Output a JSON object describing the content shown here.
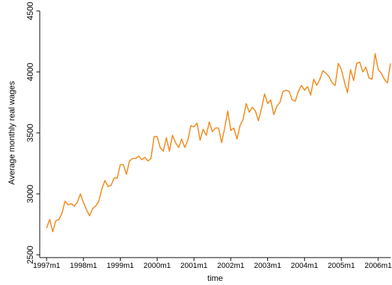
{
  "chart_data": {
    "type": "line",
    "y_label": "Average monthly real wages",
    "x_label": "time",
    "categories": [
      "1997m1",
      null,
      null,
      null,
      null,
      null,
      null,
      null,
      null,
      null,
      null,
      null,
      "1998m1",
      null,
      null,
      null,
      null,
      null,
      null,
      null,
      null,
      null,
      null,
      null,
      "1999m1",
      null,
      null,
      null,
      null,
      null,
      null,
      null,
      null,
      null,
      null,
      null,
      "2000m1",
      null,
      null,
      null,
      null,
      null,
      null,
      null,
      null,
      null,
      null,
      null,
      "2001m1",
      null,
      null,
      null,
      null,
      null,
      null,
      null,
      null,
      null,
      null,
      null,
      "2002m1",
      null,
      null,
      null,
      null,
      null,
      null,
      null,
      null,
      null,
      null,
      null,
      "2003m1",
      null,
      null,
      null,
      null,
      null,
      null,
      null,
      null,
      null,
      null,
      null,
      "2004m1",
      null,
      null,
      null,
      null,
      null,
      null,
      null,
      null,
      null,
      null,
      null,
      "2005m1",
      null,
      null,
      null,
      null,
      null,
      null,
      null,
      null,
      null,
      null,
      null,
      "2006m1",
      null,
      null,
      null,
      null
    ],
    "values": [
      2720,
      2790,
      2690,
      2780,
      2790,
      2840,
      2940,
      2910,
      2920,
      2900,
      2930,
      3000,
      2930,
      2870,
      2820,
      2880,
      2900,
      2940,
      3040,
      3110,
      3060,
      3070,
      3130,
      3130,
      3240,
      3240,
      3160,
      3270,
      3290,
      3290,
      3310,
      3280,
      3300,
      3270,
      3290,
      3470,
      3470,
      3380,
      3350,
      3460,
      3350,
      3480,
      3420,
      3380,
      3450,
      3380,
      3440,
      3560,
      3550,
      3580,
      3440,
      3530,
      3480,
      3590,
      3510,
      3540,
      3540,
      3420,
      3540,
      3680,
      3520,
      3540,
      3450,
      3560,
      3610,
      3740,
      3670,
      3710,
      3680,
      3600,
      3700,
      3820,
      3740,
      3770,
      3650,
      3720,
      3750,
      3840,
      3850,
      3840,
      3770,
      3760,
      3840,
      3890,
      3850,
      3880,
      3810,
      3940,
      3890,
      3940,
      4010,
      3990,
      3960,
      3910,
      3890,
      4070,
      4020,
      3920,
      3830,
      4020,
      3930,
      4070,
      4080,
      4000,
      4040,
      3950,
      3940,
      4150,
      4020,
      3990,
      3940,
      3910,
      4070
    ],
    "color": "#f28b1e",
    "ylim": [
      2500,
      4500
    ],
    "yticks": [
      2500,
      3000,
      3500,
      4000,
      4500
    ]
  }
}
